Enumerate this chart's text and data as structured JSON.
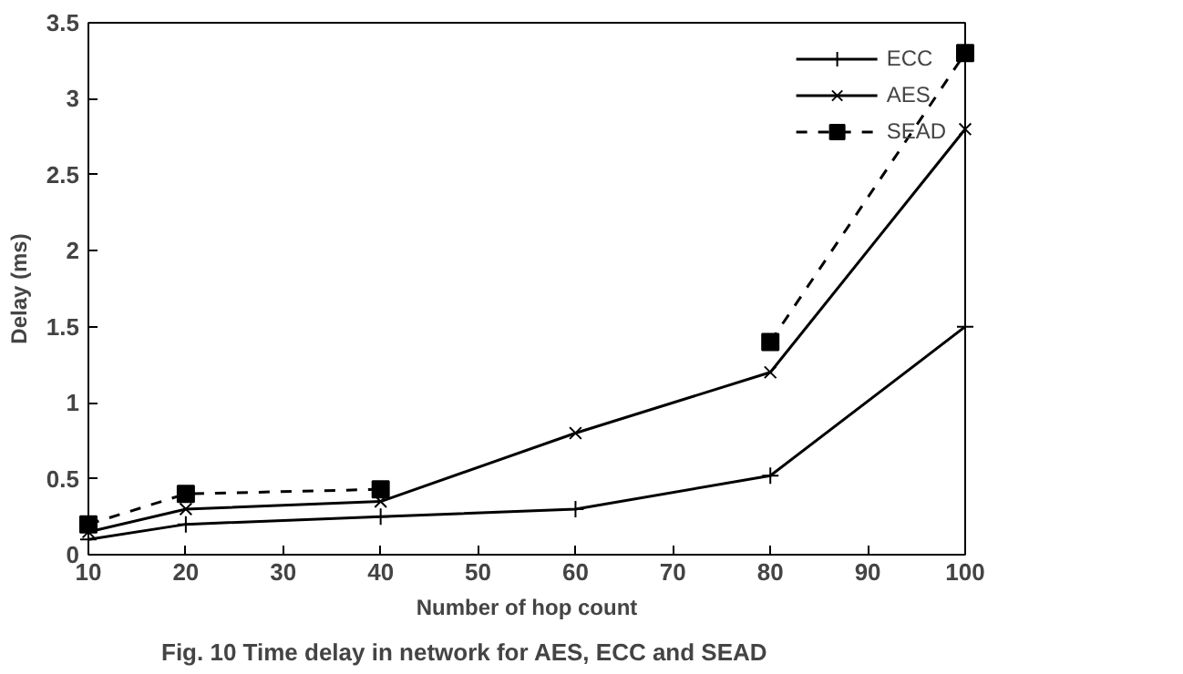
{
  "chart_data": {
    "type": "line",
    "xlabel": "Number of hop count",
    "ylabel": "Delay (ms)",
    "x": [
      10,
      20,
      40,
      60,
      80,
      100
    ],
    "series": [
      {
        "name": "ECC",
        "color": "#000000",
        "values": [
          0.1,
          0.2,
          0.25,
          0.3,
          0.52,
          1.5
        ],
        "marker": "cross",
        "line_style": "solid"
      },
      {
        "name": "AES",
        "color": "#000000",
        "values": [
          0.15,
          0.3,
          0.35,
          0.8,
          1.2,
          2.8
        ],
        "marker": "x",
        "line_style": "solid"
      },
      {
        "name": "SEAD",
        "color": "#000000",
        "values": [
          0.2,
          0.4,
          0.43,
          null,
          1.4,
          3.3
        ],
        "marker": "square",
        "line_style": "dashed"
      }
    ],
    "xlim": [
      10,
      100
    ],
    "ylim": [
      0,
      3.5
    ],
    "xticks": [
      10,
      20,
      30,
      40,
      50,
      60,
      70,
      80,
      90,
      100
    ],
    "yticks": [
      0,
      {
        "value": 0.5,
        "label": "0.5"
      },
      1,
      {
        "value": 1.5,
        "label": "1.5"
      },
      2,
      {
        "value": 2.5,
        "label": "2.5"
      },
      3,
      {
        "value": 3.5,
        "label": "3.5"
      }
    ],
    "grid": false,
    "legend": "top right",
    "annotations": [
      "Fig. 10 Time delay in network for AES, ECC and SEAD"
    ]
  }
}
